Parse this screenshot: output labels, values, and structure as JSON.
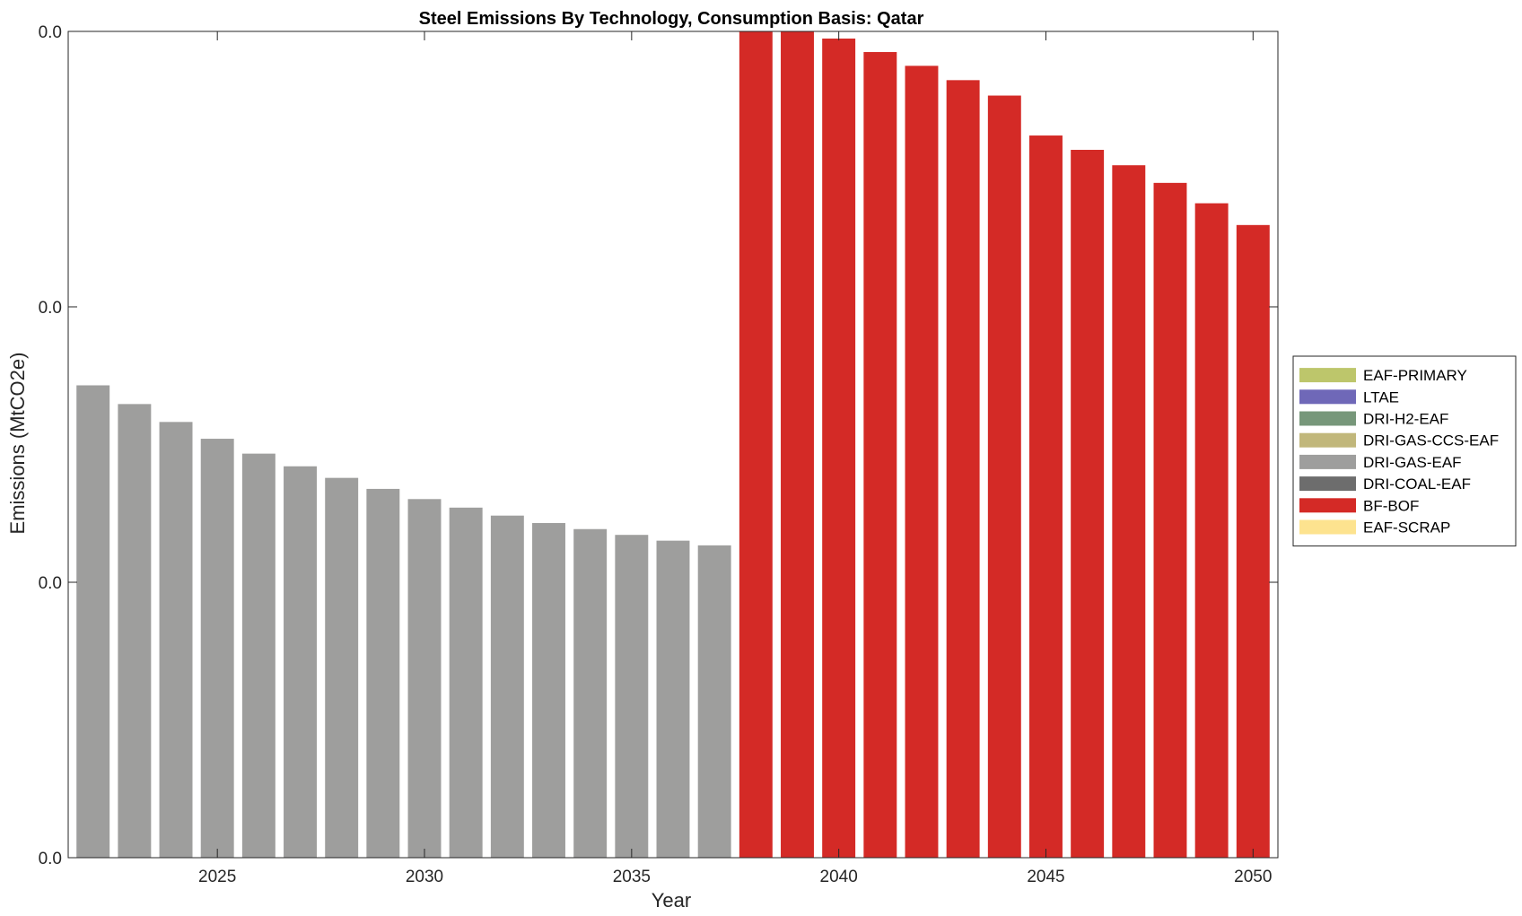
{
  "chart_data": {
    "type": "bar",
    "stacked": true,
    "title": "Steel Emissions By Technology, Consumption Basis: Qatar",
    "xlabel": "Year",
    "ylabel": "Emissions (MtCO2e)",
    "x": [
      2022,
      2023,
      2024,
      2025,
      2026,
      2027,
      2028,
      2029,
      2030,
      2031,
      2032,
      2033,
      2034,
      2035,
      2036,
      2037,
      2038,
      2039,
      2040,
      2041,
      2042,
      2043,
      2044,
      2045,
      2046,
      2047,
      2048,
      2049,
      2050
    ],
    "x_ticks": [
      2025,
      2030,
      2035,
      2040,
      2045,
      2050
    ],
    "x_tick_labels": [
      "2025",
      "2030",
      "2035",
      "2040",
      "2045",
      "2050"
    ],
    "xlim": [
      2021.4,
      2050.6
    ],
    "ylim": [
      0,
      0.03
    ],
    "y_ticks": [
      0,
      0.01,
      0.02,
      0.03
    ],
    "y_tick_labels": [
      "0.0",
      "0.0",
      "0.0",
      "0.0"
    ],
    "grid": false,
    "legend_position": "outside-right",
    "legend": [
      {
        "name": "EAF-PRIMARY",
        "color": "#bdc66b"
      },
      {
        "name": "LTAE",
        "color": "#6f68b8"
      },
      {
        "name": "DRI-H2-EAF",
        "color": "#77977a"
      },
      {
        "name": "DRI-GAS-CCS-EAF",
        "color": "#c1b77b"
      },
      {
        "name": "DRI-GAS-EAF",
        "color": "#9e9e9d"
      },
      {
        "name": "DRI-COAL-EAF",
        "color": "#6d6d6d"
      },
      {
        "name": "BF-BOF",
        "color": "#d42a26"
      },
      {
        "name": "EAF-SCRAP",
        "color": "#fde38f"
      }
    ],
    "series": [
      {
        "name": "EAF-PRIMARY",
        "color": "#bdc66b",
        "values": [
          0,
          0,
          0,
          0,
          0,
          0,
          0,
          0,
          0,
          0,
          0,
          0,
          0,
          0,
          0,
          0,
          0,
          0,
          0,
          0,
          0,
          0,
          0,
          0,
          0,
          0,
          0,
          0,
          0
        ]
      },
      {
        "name": "LTAE",
        "color": "#6f68b8",
        "values": [
          0,
          0,
          0,
          0,
          0,
          0,
          0,
          0,
          0,
          0,
          0,
          0,
          0,
          0,
          0,
          0,
          0,
          0,
          0,
          0,
          0,
          0,
          0,
          0,
          0,
          0,
          0,
          0,
          0
        ]
      },
      {
        "name": "DRI-H2-EAF",
        "color": "#77977a",
        "values": [
          0,
          0,
          0,
          0,
          0,
          0,
          0,
          0,
          0,
          0,
          0,
          0,
          0,
          0,
          0,
          0,
          0,
          0,
          0,
          0,
          0,
          0,
          0,
          0,
          0,
          0,
          0,
          0,
          0
        ]
      },
      {
        "name": "DRI-GAS-CCS-EAF",
        "color": "#c1b77b",
        "values": [
          0,
          0,
          0,
          0,
          0,
          0,
          0,
          0,
          0,
          0,
          0,
          0,
          0,
          0,
          0,
          0,
          0,
          0,
          0,
          0,
          0,
          0,
          0,
          0,
          0,
          0,
          0,
          0,
          0
        ]
      },
      {
        "name": "DRI-GAS-EAF",
        "color": "#9e9e9d",
        "values": [
          0.01715,
          0.01647,
          0.01582,
          0.01521,
          0.01467,
          0.01421,
          0.01379,
          0.01339,
          0.01302,
          0.01271,
          0.01242,
          0.01215,
          0.01193,
          0.01172,
          0.01151,
          0.01134,
          0,
          0,
          0,
          0,
          0,
          0,
          0,
          0,
          0,
          0,
          0,
          0,
          0
        ]
      },
      {
        "name": "DRI-COAL-EAF",
        "color": "#6d6d6d",
        "values": [
          0,
          0,
          0,
          0,
          0,
          0,
          0,
          0,
          0,
          0,
          0,
          0,
          0,
          0,
          0,
          0,
          0,
          0,
          0,
          0,
          0,
          0,
          0,
          0,
          0,
          0,
          0,
          0,
          0
        ]
      },
      {
        "name": "BF-BOF",
        "color": "#d42a26",
        "values": [
          0,
          0,
          0,
          0,
          0,
          0,
          0,
          0,
          0,
          0,
          0,
          0,
          0,
          0,
          0,
          0,
          0.03071,
          0.03024,
          0.02974,
          0.02925,
          0.02875,
          0.02823,
          0.02767,
          0.02622,
          0.0257,
          0.02514,
          0.0245,
          0.02376,
          0.02297
        ]
      },
      {
        "name": "EAF-SCRAP",
        "color": "#fde38f",
        "values": [
          0,
          0,
          0,
          0,
          0,
          0,
          0,
          0,
          0,
          0,
          0,
          0,
          0,
          0,
          0,
          0,
          0,
          0,
          0,
          0,
          0,
          0,
          0,
          0,
          0,
          0,
          0,
          0,
          0
        ]
      }
    ]
  }
}
